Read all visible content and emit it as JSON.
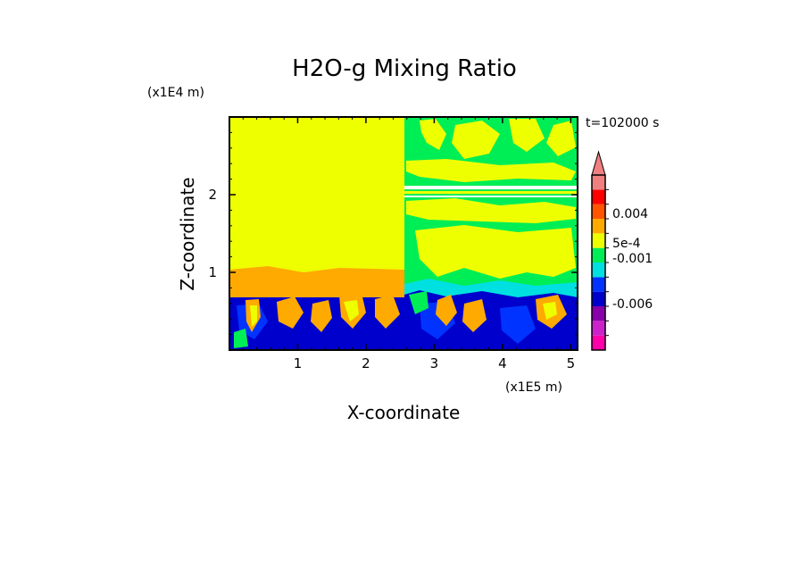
{
  "chart_data": {
    "type": "heatmap",
    "title": "H2O-g Mixing Ratio",
    "xlabel": "X-coordinate",
    "ylabel": "Z-coordinate",
    "x_scale_label": "(x1E5 m)",
    "y_scale_label": "(x1E4 m)",
    "time_label": "t=102000 s",
    "xlim": [
      0,
      5.1
    ],
    "ylim": [
      0,
      3.0
    ],
    "x_ticks": [
      "1",
      "2",
      "3",
      "4",
      "5"
    ],
    "y_ticks": [
      "1",
      "2"
    ],
    "colorbar": {
      "colors": [
        "#ff00aa",
        "#cc22cc",
        "#8800aa",
        "#0000cc",
        "#0033ff",
        "#00e0e0",
        "#00ee55",
        "#eeff00",
        "#ffaa00",
        "#ff5500",
        "#ff0000",
        "#f08080"
      ],
      "labels": [
        "-0.006",
        "-0.001",
        "5e-4",
        "0.004"
      ],
      "extend": "max"
    },
    "regions": [
      {
        "name": "upper-left",
        "value": "5e-4 to 0.001",
        "color": "#eeff00"
      },
      {
        "name": "upper-right",
        "value": "-0.001 to 5e-4 with patches",
        "color": "#00ee55"
      },
      {
        "name": "boundary-layer",
        "value": "below -0.001",
        "color": "#0000cc"
      }
    ]
  }
}
